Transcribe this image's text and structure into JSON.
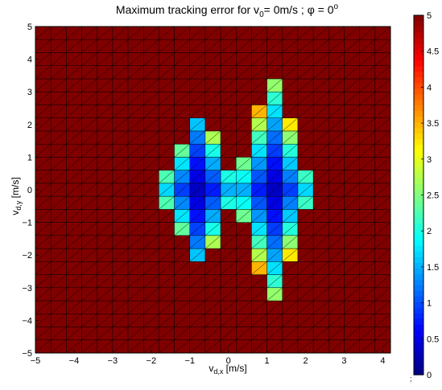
{
  "chart_data": {
    "type": "heatmap",
    "title_main": "Maximum tracking error for v",
    "title_sub": "0",
    "title_mid": "= 0m/s ; ",
    "title_phi": "φ",
    "title_eq": " = 0",
    "title_sup": "o",
    "xlabel_main": "v",
    "xlabel_sub": "d,x",
    "xlabel_unit": " [m/s]",
    "ylabel_main": "v",
    "ylabel_sub": "d,y",
    "ylabel_unit": " [m/s]",
    "xlim": [
      -5,
      4.2
    ],
    "ylim": [
      -5,
      5
    ],
    "x_ticks": [
      -5,
      -4,
      -3,
      -2,
      -1,
      0,
      1,
      2,
      3,
      4
    ],
    "x_tick_labels": [
      "−5",
      "−4",
      "−3",
      "−2",
      "−1",
      "0",
      "1",
      "2",
      "3",
      "4"
    ],
    "y_ticks": [
      -5,
      -4,
      -3,
      -2,
      -1,
      0,
      1,
      2,
      3,
      4,
      5
    ],
    "y_tick_labels": [
      "−5",
      "−4",
      "−3",
      "−2",
      "−1",
      "0",
      "1",
      "2",
      "3",
      "4",
      "5"
    ],
    "grid_step": 0.4,
    "colormap": "jet",
    "color_range": [
      0,
      5
    ],
    "saturated_value": 5,
    "colorbar_ticks": [
      0,
      0.5,
      1,
      1.5,
      2,
      2.5,
      3,
      3.5,
      4,
      4.5,
      5
    ],
    "colorbar_tick_labels": [
      "0",
      "0.5",
      "1",
      "1.5",
      "2",
      "2.5",
      "3",
      "3.5",
      "4",
      "4.5",
      "5"
    ],
    "colorbar_side": "right",
    "data_region": "Bowtie-shaped finite-error region centred at the origin (approx. v_dx from -2 to 2.2, v_dy from -3 to 3.4); error ~0.3 near the horizontal axis rising to ~4.5 at the region edges; all cells outside the region are saturated at 5 (dark red)."
  },
  "stray_mark": ";"
}
